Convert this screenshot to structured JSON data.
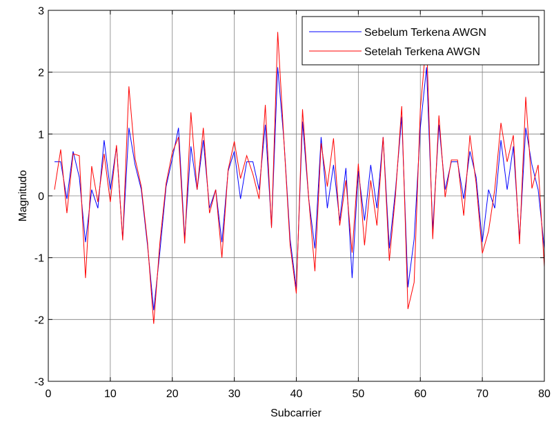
{
  "chart_data": {
    "type": "line",
    "xlabel": "Subcarrier",
    "ylabel": "Magnitudo",
    "xlim": [
      0,
      80
    ],
    "ylim": [
      -3,
      3
    ],
    "xticks": [
      "0",
      "10",
      "20",
      "30",
      "40",
      "50",
      "60",
      "70",
      "80"
    ],
    "yticks": [
      "3",
      "2",
      "1",
      "0",
      "-1",
      "-2",
      "-3"
    ],
    "grid": true,
    "legend_position": "top-right",
    "x": [
      1,
      2,
      3,
      4,
      5,
      6,
      7,
      8,
      9,
      10,
      11,
      12,
      13,
      14,
      15,
      16,
      17,
      18,
      19,
      20,
      21,
      22,
      23,
      24,
      25,
      26,
      27,
      28,
      29,
      30,
      31,
      32,
      33,
      34,
      35,
      36,
      37,
      38,
      39,
      40,
      41,
      42,
      43,
      44,
      45,
      46,
      47,
      48,
      49,
      50,
      51,
      52,
      53,
      54,
      55,
      56,
      57,
      58,
      59,
      60,
      61,
      62,
      63,
      64,
      65,
      66,
      67,
      68,
      69,
      70,
      71,
      72,
      73,
      74,
      75,
      76,
      77,
      78,
      79,
      80
    ],
    "series": [
      {
        "name": "Sebelum Terkena AWGN",
        "color": "#0000ff",
        "values": [
          0.55,
          0.55,
          -0.05,
          0.72,
          0.3,
          -0.75,
          0.1,
          -0.2,
          0.9,
          0.1,
          0.8,
          -0.7,
          1.1,
          0.5,
          0.1,
          -0.8,
          -1.85,
          -0.9,
          0.15,
          0.6,
          1.1,
          -0.7,
          0.8,
          0.1,
          0.9,
          -0.2,
          0.1,
          -0.75,
          0.4,
          0.72,
          -0.05,
          0.55,
          0.55,
          0.1,
          1.15,
          -0.5,
          2.08,
          0.9,
          -0.7,
          -1.5,
          1.2,
          -0.05,
          -0.85,
          0.95,
          -0.2,
          0.5,
          -0.4,
          0.45,
          -1.33,
          0.4,
          -0.4,
          0.5,
          -0.2,
          0.95,
          -0.85,
          0.1,
          1.28,
          -1.48,
          -0.7,
          1.1,
          2.08,
          -0.55,
          1.15,
          0.1,
          0.55,
          0.55,
          -0.05,
          0.72,
          0.3,
          -0.75,
          0.1,
          -0.2,
          0.9,
          0.1,
          0.8,
          -0.7,
          1.1,
          0.5,
          0.1,
          -0.85
        ]
      },
      {
        "name": "Setelah Terkena AWGN",
        "color": "#ff0000",
        "values": [
          0.1,
          0.75,
          -0.28,
          0.68,
          0.65,
          -1.33,
          0.48,
          -0.1,
          0.68,
          -0.1,
          0.82,
          -0.72,
          1.77,
          0.6,
          0.15,
          -0.75,
          -2.07,
          -0.75,
          0.2,
          0.7,
          0.95,
          -0.77,
          1.35,
          0.1,
          1.1,
          -0.28,
          0.1,
          -1.0,
          0.42,
          0.88,
          0.28,
          0.65,
          0.35,
          -0.05,
          1.47,
          -0.52,
          2.65,
          0.9,
          -0.8,
          -1.58,
          1.4,
          -0.05,
          -1.22,
          0.85,
          0.15,
          0.93,
          -0.48,
          0.25,
          -0.92,
          0.52,
          -0.8,
          0.25,
          -0.48,
          0.95,
          -1.05,
          0.02,
          1.45,
          -1.83,
          -1.4,
          1.4,
          2.55,
          -0.7,
          1.3,
          -0.02,
          0.58,
          0.58,
          -0.32,
          0.98,
          0.2,
          -0.93,
          -0.57,
          0.1,
          1.18,
          0.55,
          0.98,
          -0.78,
          1.6,
          0.12,
          0.5,
          -1.15
        ]
      }
    ]
  }
}
